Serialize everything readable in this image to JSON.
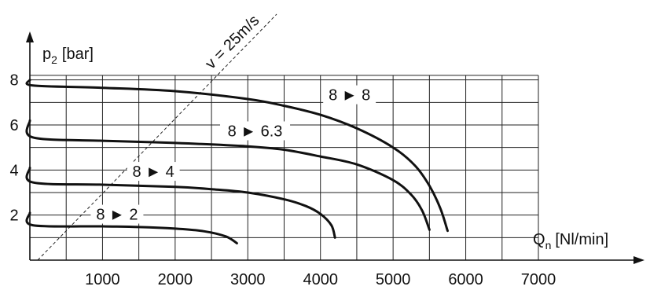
{
  "chart_data": {
    "type": "line",
    "title": "",
    "xlabel": {
      "main": "Q",
      "sub": "n",
      "unit": "[Nl/min]"
    },
    "ylabel": {
      "main": "p",
      "sub": "2",
      "unit": "[bar]"
    },
    "xlim": [
      0,
      7000
    ],
    "ylim": [
      0,
      9
    ],
    "x_ticks": [
      "1000",
      "2000",
      "3000",
      "4000",
      "5000",
      "6000",
      "7000"
    ],
    "x_tick_values": [
      1000,
      2000,
      3000,
      4000,
      5000,
      6000,
      7000
    ],
    "y_ticks": [
      "2",
      "4",
      "6",
      "8"
    ],
    "y_tick_values": [
      2,
      4,
      6,
      8
    ],
    "grid": true,
    "reference_line": {
      "label": "v = 25m/s"
    },
    "series": [
      {
        "name": "8 ► 8",
        "x": [
          0,
          40,
          1000,
          2000,
          3000,
          3500,
          4000,
          4500,
          5000,
          5300,
          5500,
          5650,
          5750
        ],
        "y": [
          8.0,
          7.75,
          7.65,
          7.5,
          7.15,
          6.85,
          6.45,
          5.85,
          5.0,
          4.2,
          3.3,
          2.3,
          1.3
        ]
      },
      {
        "name": "8 ► 6.3",
        "x": [
          0,
          40,
          1000,
          2000,
          3000,
          3500,
          4000,
          4500,
          5000,
          5250,
          5400,
          5500
        ],
        "y": [
          6.2,
          5.45,
          5.3,
          5.2,
          5.05,
          4.9,
          4.6,
          4.25,
          3.55,
          2.9,
          2.2,
          1.35
        ]
      },
      {
        "name": "8 ► 4",
        "x": [
          0,
          40,
          1000,
          2000,
          2500,
          3000,
          3500,
          3800,
          4000,
          4150,
          4200
        ],
        "y": [
          4.1,
          3.45,
          3.35,
          3.25,
          3.15,
          3.0,
          2.7,
          2.4,
          2.05,
          1.55,
          1.0
        ]
      },
      {
        "name": "8 ► 2",
        "x": [
          0,
          40,
          1000,
          1500,
          2000,
          2400,
          2700,
          2850
        ],
        "y": [
          2.1,
          1.55,
          1.5,
          1.47,
          1.4,
          1.28,
          1.05,
          0.75
        ]
      }
    ]
  }
}
